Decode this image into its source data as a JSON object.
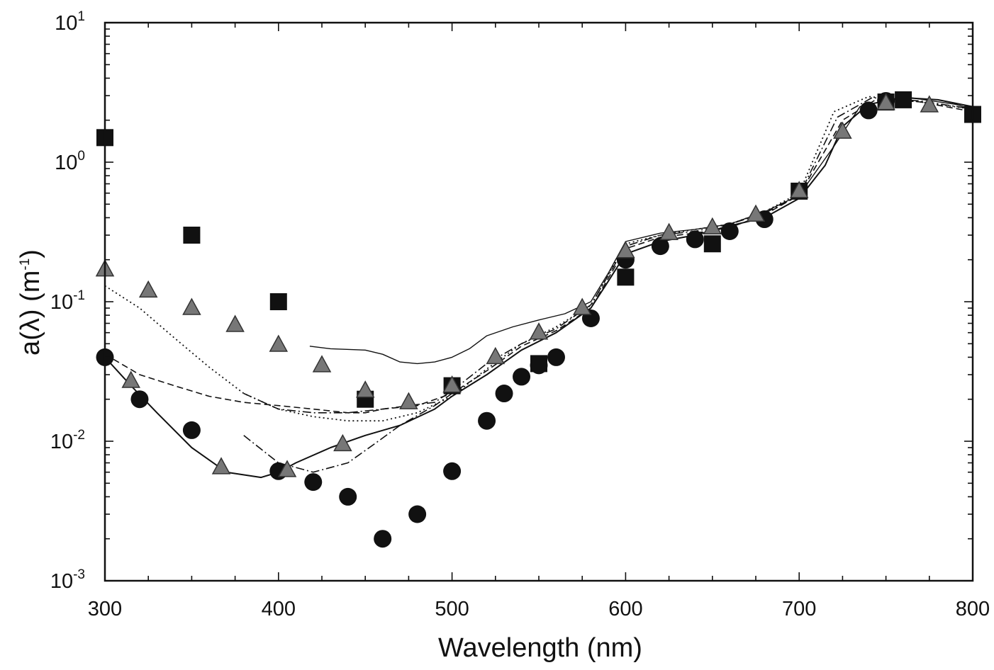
{
  "chart_data": {
    "type": "scatter",
    "title": "",
    "xlabel": "Wavelength (nm)",
    "ylabel": "a(λ) (m",
    "ylabel_sup": "-1",
    "ylabel_tail": ")",
    "xlim": [
      300,
      800
    ],
    "ylim": [
      0.001,
      10
    ],
    "yscale": "log",
    "grid": false,
    "legend": "none",
    "x_ticks": [
      {
        "value": 300,
        "label": "300"
      },
      {
        "value": 400,
        "label": "400"
      },
      {
        "value": 500,
        "label": "500"
      },
      {
        "value": 600,
        "label": "600"
      },
      {
        "value": 700,
        "label": "700"
      },
      {
        "value": 800,
        "label": "800"
      }
    ],
    "y_ticks": [
      {
        "value": 0.001,
        "base": "10",
        "exp": "-3"
      },
      {
        "value": 0.01,
        "base": "10",
        "exp": "-2"
      },
      {
        "value": 0.1,
        "base": "10",
        "exp": "-1"
      },
      {
        "value": 1,
        "base": "10",
        "exp": "0"
      },
      {
        "value": 10,
        "base": "10",
        "exp": "1"
      }
    ],
    "markers": [
      {
        "marker": "square",
        "color": "#111111",
        "points": [
          [
            300,
            1.5
          ],
          [
            350,
            0.3
          ],
          [
            400,
            0.1
          ],
          [
            450,
            0.02
          ],
          [
            500,
            0.025
          ],
          [
            550,
            0.036
          ],
          [
            600,
            0.15
          ],
          [
            650,
            0.26
          ],
          [
            700,
            0.62
          ],
          [
            750,
            2.7
          ],
          [
            760,
            2.8
          ],
          [
            800,
            2.2
          ]
        ]
      },
      {
        "marker": "circle",
        "color": "#111111",
        "points": [
          [
            300,
            0.04
          ],
          [
            320,
            0.02
          ],
          [
            350,
            0.012
          ],
          [
            400,
            0.0061
          ],
          [
            420,
            0.0051
          ],
          [
            440,
            0.004
          ],
          [
            460,
            0.002
          ],
          [
            480,
            0.003
          ],
          [
            500,
            0.0061
          ],
          [
            520,
            0.014
          ],
          [
            530,
            0.022
          ],
          [
            540,
            0.029
          ],
          [
            550,
            0.035
          ],
          [
            560,
            0.04
          ],
          [
            580,
            0.076
          ],
          [
            600,
            0.2
          ],
          [
            620,
            0.25
          ],
          [
            640,
            0.28
          ],
          [
            660,
            0.32
          ],
          [
            680,
            0.39
          ],
          [
            740,
            2.35
          ],
          [
            750,
            2.75
          ]
        ]
      },
      {
        "marker": "triangle",
        "color": "#777777",
        "points": [
          [
            300,
            0.17
          ],
          [
            325,
            0.12
          ],
          [
            350,
            0.09
          ],
          [
            375,
            0.068
          ],
          [
            400,
            0.049
          ],
          [
            425,
            0.035
          ],
          [
            450,
            0.023
          ],
          [
            475,
            0.019
          ],
          [
            500,
            0.025
          ],
          [
            525,
            0.04
          ],
          [
            550,
            0.06
          ],
          [
            575,
            0.09
          ],
          [
            600,
            0.23
          ],
          [
            625,
            0.31
          ],
          [
            650,
            0.34
          ],
          [
            675,
            0.42
          ],
          [
            700,
            0.62
          ],
          [
            725,
            1.65
          ],
          [
            750,
            2.65
          ],
          [
            775,
            2.55
          ],
          [
            315,
            0.027
          ],
          [
            367,
            0.0065
          ],
          [
            405,
            0.0062
          ],
          [
            437,
            0.0095
          ]
        ]
      }
    ],
    "curves": [
      {
        "style": "solid",
        "points": [
          [
            300,
            0.04
          ],
          [
            315,
            0.025
          ],
          [
            330,
            0.016
          ],
          [
            350,
            0.009
          ],
          [
            370,
            0.006
          ],
          [
            390,
            0.0055
          ],
          [
            400,
            0.006
          ],
          [
            410,
            0.007
          ],
          [
            430,
            0.009
          ],
          [
            450,
            0.011
          ],
          [
            470,
            0.013
          ],
          [
            490,
            0.017
          ],
          [
            500,
            0.021
          ],
          [
            520,
            0.03
          ],
          [
            540,
            0.045
          ],
          [
            560,
            0.06
          ],
          [
            580,
            0.09
          ],
          [
            590,
            0.14
          ],
          [
            600,
            0.22
          ],
          [
            620,
            0.27
          ],
          [
            640,
            0.3
          ],
          [
            660,
            0.35
          ],
          [
            680,
            0.4
          ],
          [
            700,
            0.55
          ],
          [
            715,
            0.95
          ],
          [
            725,
            1.8
          ],
          [
            740,
            2.6
          ],
          [
            760,
            2.9
          ],
          [
            780,
            2.8
          ],
          [
            800,
            2.5
          ]
        ]
      },
      {
        "style": "solid-thin",
        "points": [
          [
            418,
            0.048
          ],
          [
            430,
            0.046
          ],
          [
            450,
            0.045
          ],
          [
            460,
            0.042
          ],
          [
            470,
            0.037
          ],
          [
            480,
            0.036
          ],
          [
            490,
            0.037
          ],
          [
            500,
            0.04
          ],
          [
            510,
            0.046
          ],
          [
            520,
            0.057
          ],
          [
            535,
            0.066
          ],
          [
            550,
            0.074
          ],
          [
            565,
            0.082
          ],
          [
            580,
            0.1
          ],
          [
            590,
            0.16
          ],
          [
            600,
            0.27
          ],
          [
            620,
            0.31
          ],
          [
            640,
            0.33
          ],
          [
            660,
            0.36
          ],
          [
            680,
            0.44
          ],
          [
            700,
            0.58
          ],
          [
            720,
            1.3
          ],
          [
            735,
            2.5
          ],
          [
            760,
            2.95
          ],
          [
            790,
            2.6
          ],
          [
            800,
            2.4
          ]
        ]
      },
      {
        "style": "dashed",
        "points": [
          [
            300,
            0.042
          ],
          [
            320,
            0.03
          ],
          [
            340,
            0.025
          ],
          [
            360,
            0.021
          ],
          [
            380,
            0.019
          ],
          [
            400,
            0.018
          ],
          [
            420,
            0.017
          ],
          [
            440,
            0.016
          ],
          [
            450,
            0.016
          ],
          [
            460,
            0.017
          ],
          [
            480,
            0.018
          ],
          [
            500,
            0.022
          ],
          [
            520,
            0.032
          ],
          [
            540,
            0.048
          ],
          [
            560,
            0.062
          ],
          [
            580,
            0.09
          ],
          [
            600,
            0.24
          ],
          [
            620,
            0.29
          ],
          [
            640,
            0.31
          ],
          [
            660,
            0.34
          ],
          [
            680,
            0.42
          ],
          [
            700,
            0.58
          ],
          [
            725,
            2.0
          ],
          [
            745,
            2.85
          ],
          [
            770,
            2.7
          ],
          [
            800,
            2.3
          ]
        ]
      },
      {
        "style": "dash-dot",
        "points": [
          [
            380,
            0.022
          ],
          [
            400,
            0.017
          ],
          [
            420,
            0.016
          ],
          [
            440,
            0.016
          ],
          [
            460,
            0.017
          ],
          [
            475,
            0.018
          ],
          [
            490,
            0.019
          ],
          [
            500,
            0.023
          ],
          [
            520,
            0.036
          ],
          [
            540,
            0.05
          ],
          [
            560,
            0.064
          ],
          [
            580,
            0.095
          ],
          [
            600,
            0.25
          ],
          [
            620,
            0.3
          ],
          [
            640,
            0.32
          ],
          [
            660,
            0.36
          ],
          [
            680,
            0.43
          ],
          [
            700,
            0.58
          ],
          [
            722,
            2.1
          ],
          [
            742,
            2.9
          ],
          [
            770,
            2.75
          ],
          [
            800,
            2.4
          ]
        ]
      },
      {
        "style": "dash-dot",
        "points": [
          [
            380,
            0.011
          ],
          [
            400,
            0.007
          ],
          [
            420,
            0.006
          ],
          [
            440,
            0.007
          ],
          [
            455,
            0.0095
          ],
          [
            470,
            0.013
          ],
          [
            490,
            0.018
          ],
          [
            500,
            0.022
          ]
        ]
      },
      {
        "style": "dotted",
        "points": [
          [
            300,
            0.13
          ],
          [
            320,
            0.09
          ],
          [
            340,
            0.055
          ],
          [
            360,
            0.034
          ],
          [
            380,
            0.022
          ],
          [
            400,
            0.017
          ],
          [
            420,
            0.015
          ],
          [
            440,
            0.014
          ],
          [
            460,
            0.014
          ],
          [
            480,
            0.016
          ],
          [
            500,
            0.021
          ],
          [
            520,
            0.033
          ],
          [
            540,
            0.05
          ],
          [
            560,
            0.066
          ],
          [
            580,
            0.094
          ],
          [
            600,
            0.26
          ],
          [
            620,
            0.3
          ],
          [
            640,
            0.33
          ],
          [
            660,
            0.36
          ],
          [
            680,
            0.44
          ],
          [
            700,
            0.6
          ],
          [
            720,
            2.3
          ],
          [
            740,
            2.95
          ],
          [
            770,
            2.7
          ],
          [
            800,
            2.4
          ]
        ]
      }
    ]
  }
}
